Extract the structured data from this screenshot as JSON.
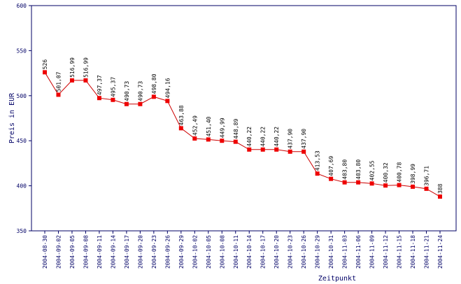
{
  "chart_data": {
    "type": "line",
    "title": "",
    "xlabel": "Zeitpunkt",
    "ylabel": "Preis in EUR",
    "ylim": [
      350,
      600
    ],
    "yticks": [
      "350",
      "400",
      "450",
      "500",
      "550",
      "600"
    ],
    "grid": false,
    "line_color": "#cc0000",
    "marker_color": "#ee0000",
    "axis_color": "#000066",
    "categories": [
      "2004-08-30",
      "2004-09-02",
      "2004-09-05",
      "2004-09-08",
      "2004-09-11",
      "2004-09-14",
      "2004-09-17",
      "2004-09-20",
      "2004-09-23",
      "2004-09-26",
      "2004-09-29",
      "2004-10-02",
      "2004-10-05",
      "2004-10-08",
      "2004-10-11",
      "2004-10-14",
      "2004-10-17",
      "2004-10-20",
      "2004-10-23",
      "2004-10-26",
      "2004-10-29",
      "2004-10-31",
      "2004-11-03",
      "2004-11-06",
      "2004-11-09",
      "2004-11-12",
      "2004-11-15",
      "2004-11-18",
      "2004-11-21",
      "2004-11-24"
    ],
    "values": [
      526,
      501.07,
      516.99,
      516.99,
      497.37,
      495.37,
      490.73,
      490.73,
      498.8,
      494.16,
      463.88,
      452.49,
      451.4,
      449.99,
      448.89,
      440.22,
      440.22,
      440.22,
      437.9,
      437.9,
      413.53,
      407.69,
      403.8,
      403.8,
      402.55,
      400.32,
      400.78,
      398.99,
      396.71,
      388
    ],
    "value_labels": [
      "526",
      "501,07",
      "516,99",
      "516,99",
      "497,37",
      "495,37",
      "490,73",
      "490,73",
      "498,80",
      "494,16",
      "463,88",
      "452,49",
      "451,40",
      "449,99",
      "448,89",
      "440,22",
      "440,22",
      "440,22",
      "437,90",
      "437,90",
      "413,53",
      "407,69",
      "403,80",
      "403,80",
      "402,55",
      "400,32",
      "400,78",
      "398,99",
      "396,71",
      "388"
    ]
  }
}
